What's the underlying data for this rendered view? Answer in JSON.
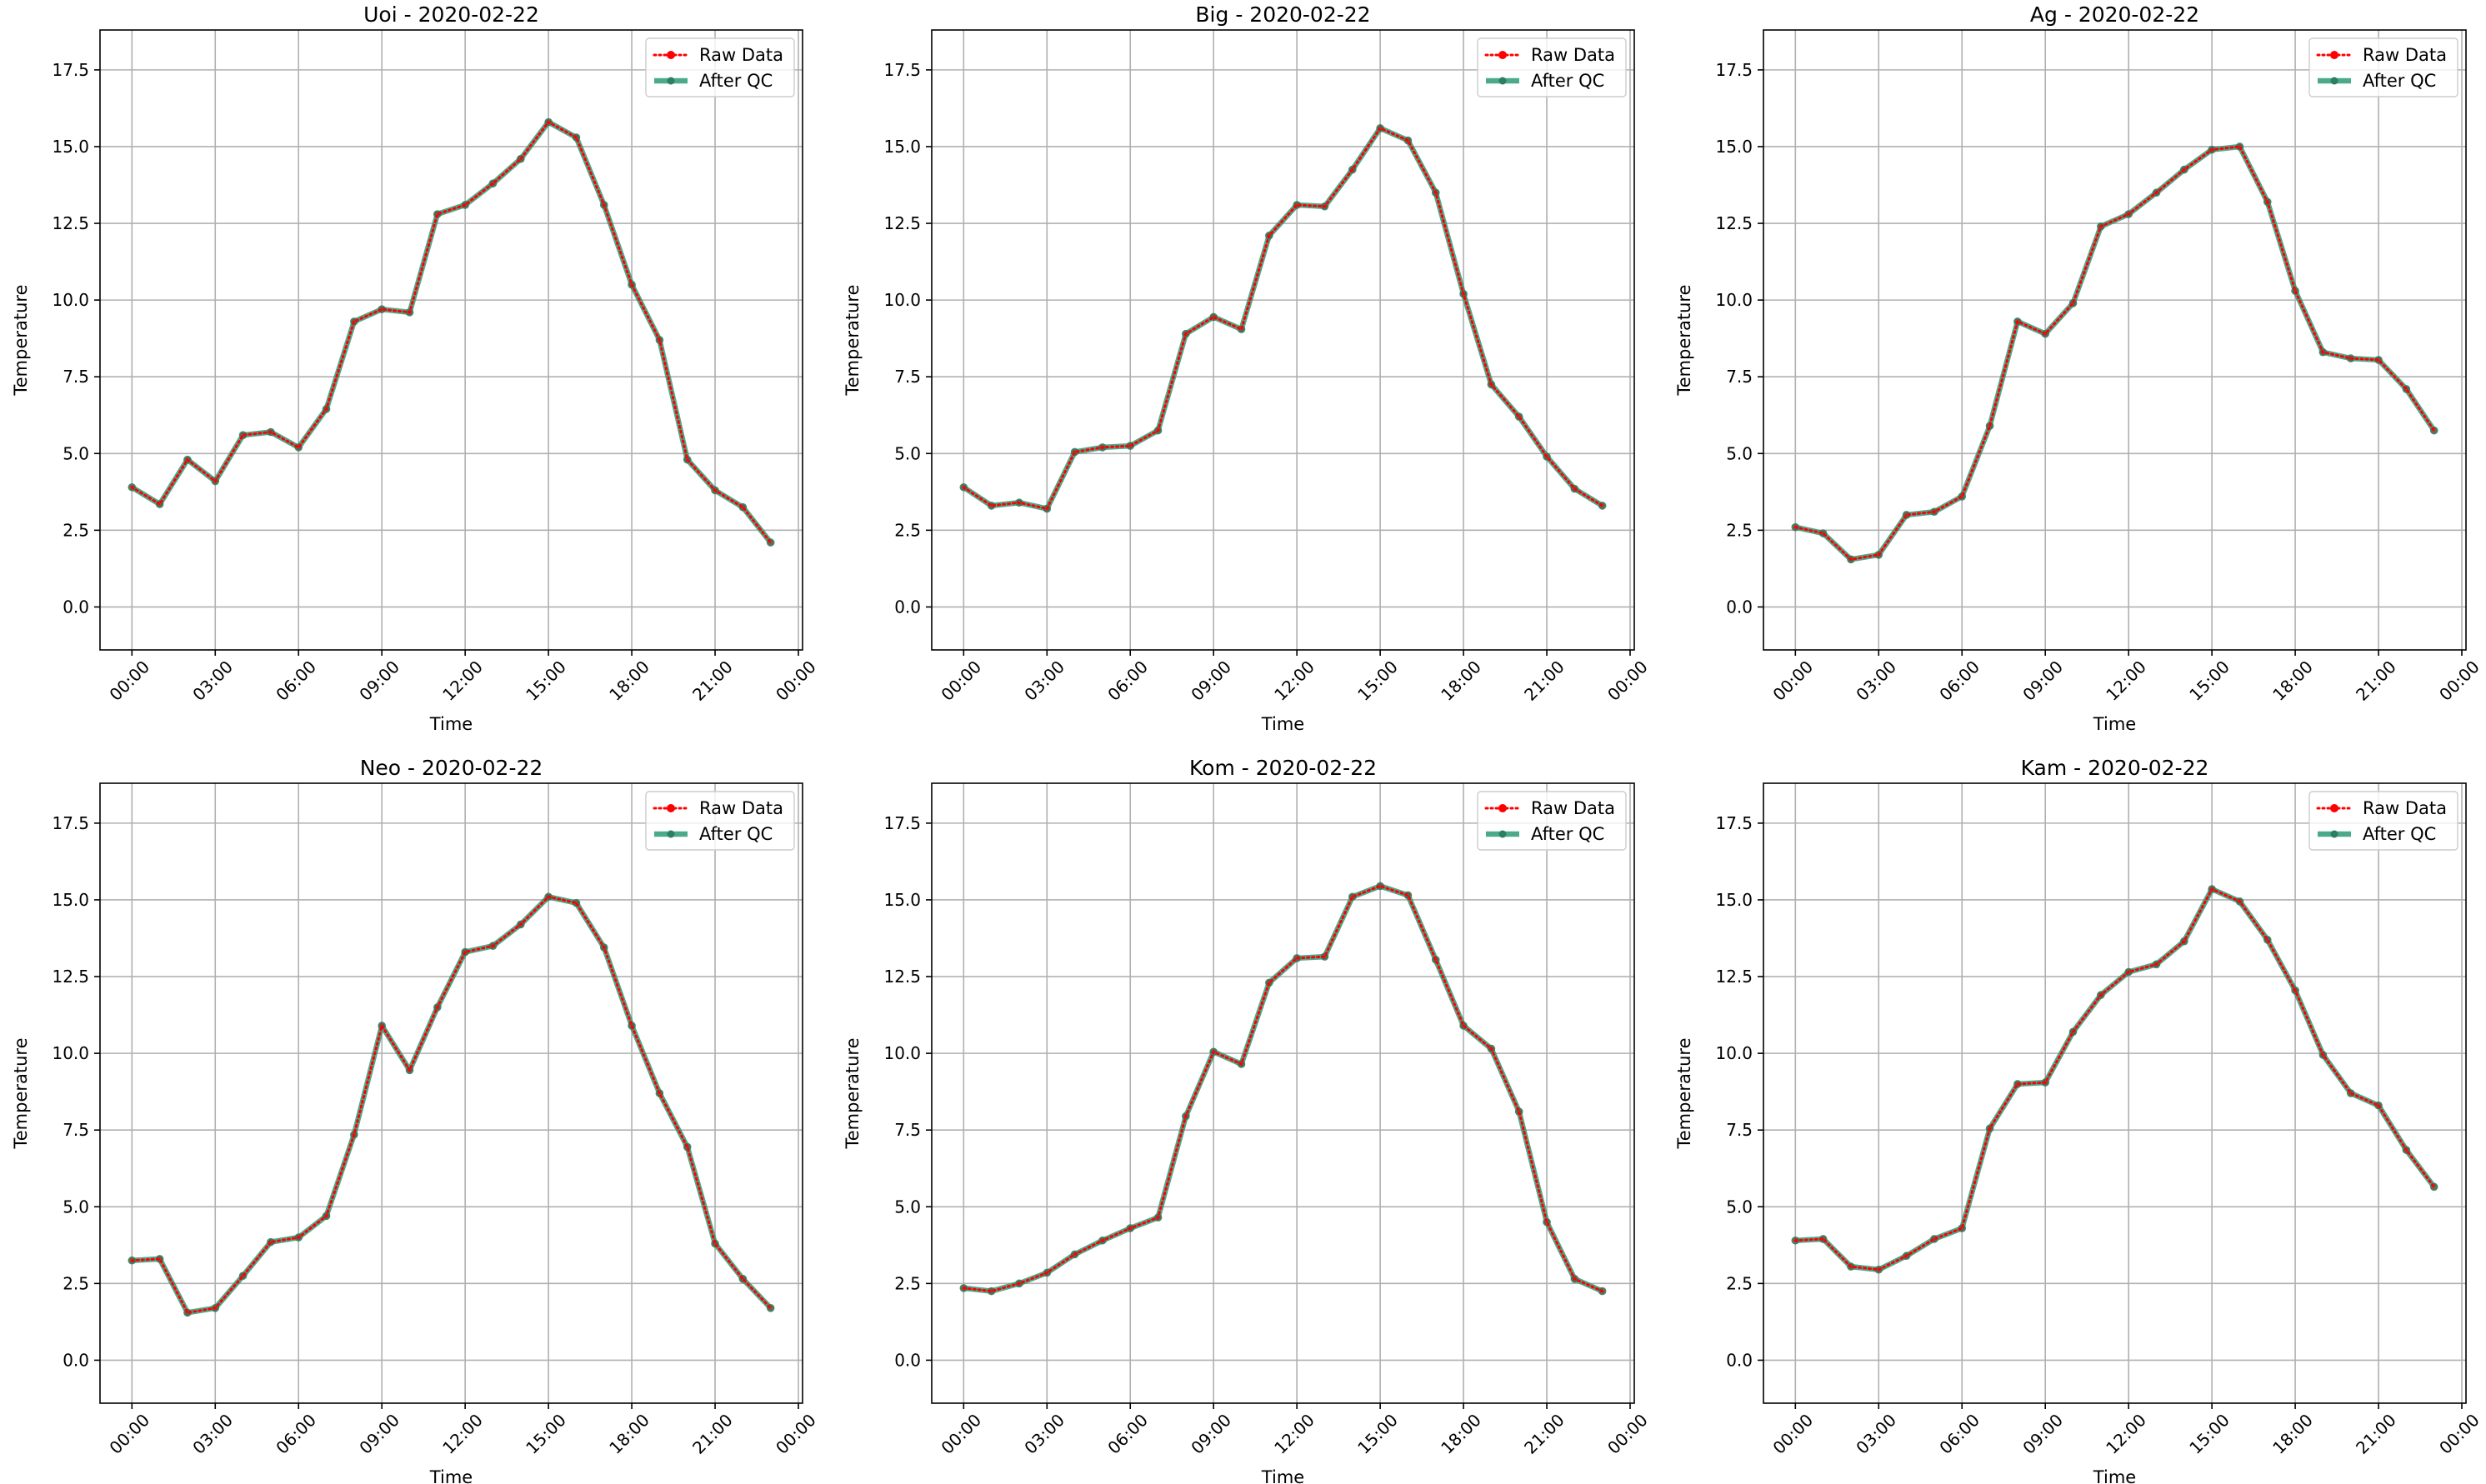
{
  "chart_data": [
    {
      "type": "line",
      "title": "Uoi - 2020-02-22",
      "xlabel": "Time",
      "ylabel": "Temperature",
      "x_unit": "hour",
      "xlim": [
        -1.15,
        24.15
      ],
      "ylim": [
        -1.4,
        18.8
      ],
      "xticks": [
        0,
        3,
        6,
        9,
        12,
        15,
        18,
        21,
        24
      ],
      "xtick_labels": [
        "00:00",
        "03:00",
        "06:00",
        "09:00",
        "12:00",
        "15:00",
        "18:00",
        "21:00",
        "00:00"
      ],
      "yticks": [
        0.0,
        2.5,
        5.0,
        7.5,
        10.0,
        12.5,
        15.0,
        17.5
      ],
      "ytick_labels": [
        "0.0",
        "2.5",
        "5.0",
        "7.5",
        "10.0",
        "12.5",
        "15.0",
        "17.5"
      ],
      "grid": true,
      "legend_position": "top-right",
      "x": [
        0,
        1,
        2,
        3,
        4,
        5,
        6,
        7,
        8,
        9,
        10,
        11,
        12,
        13,
        14,
        15,
        16,
        17,
        18,
        19,
        20,
        21,
        22,
        23
      ],
      "series": [
        {
          "name": "Raw Data",
          "style": "dotted-marker",
          "color": "#ff0000",
          "values": [
            3.9,
            3.35,
            4.8,
            4.1,
            5.6,
            5.7,
            5.2,
            6.45,
            9.3,
            9.7,
            9.6,
            12.8,
            13.1,
            13.8,
            14.6,
            15.8,
            15.3,
            13.1,
            10.5,
            8.7,
            4.8,
            3.8,
            3.25,
            2.1
          ]
        },
        {
          "name": "After QC",
          "style": "solid-marker",
          "color": "#2e9a78",
          "values": [
            3.9,
            3.35,
            4.8,
            4.1,
            5.6,
            5.7,
            5.2,
            6.45,
            9.3,
            9.7,
            9.6,
            12.8,
            13.1,
            13.8,
            14.6,
            15.8,
            15.3,
            13.1,
            10.5,
            8.7,
            4.8,
            3.8,
            3.25,
            2.1
          ]
        }
      ]
    },
    {
      "type": "line",
      "title": "Big - 2020-02-22",
      "xlabel": "Time",
      "ylabel": "Temperature",
      "x_unit": "hour",
      "xlim": [
        -1.15,
        24.15
      ],
      "ylim": [
        -1.4,
        18.8
      ],
      "xticks": [
        0,
        3,
        6,
        9,
        12,
        15,
        18,
        21,
        24
      ],
      "xtick_labels": [
        "00:00",
        "03:00",
        "06:00",
        "09:00",
        "12:00",
        "15:00",
        "18:00",
        "21:00",
        "00:00"
      ],
      "yticks": [
        0.0,
        2.5,
        5.0,
        7.5,
        10.0,
        12.5,
        15.0,
        17.5
      ],
      "ytick_labels": [
        "0.0",
        "2.5",
        "5.0",
        "7.5",
        "10.0",
        "12.5",
        "15.0",
        "17.5"
      ],
      "grid": true,
      "legend_position": "top-right",
      "x": [
        0,
        1,
        2,
        3,
        4,
        5,
        6,
        7,
        8,
        9,
        10,
        11,
        12,
        13,
        14,
        15,
        16,
        17,
        18,
        19,
        20,
        21,
        22,
        23
      ],
      "series": [
        {
          "name": "Raw Data",
          "style": "dotted-marker",
          "color": "#ff0000",
          "values": [
            3.9,
            3.3,
            3.4,
            3.2,
            5.05,
            5.2,
            5.25,
            5.75,
            8.9,
            9.45,
            9.05,
            12.1,
            13.1,
            13.05,
            14.25,
            15.6,
            15.2,
            13.5,
            10.2,
            7.25,
            6.2,
            4.9,
            3.85,
            3.3
          ]
        },
        {
          "name": "After QC",
          "style": "solid-marker",
          "color": "#2e9a78",
          "values": [
            3.9,
            3.3,
            3.4,
            3.2,
            5.05,
            5.2,
            5.25,
            5.75,
            8.9,
            9.45,
            9.05,
            12.1,
            13.1,
            13.05,
            14.25,
            15.6,
            15.2,
            13.5,
            10.2,
            7.25,
            6.2,
            4.9,
            3.85,
            3.3
          ]
        }
      ]
    },
    {
      "type": "line",
      "title": "Ag - 2020-02-22",
      "xlabel": "Time",
      "ylabel": "Temperature",
      "x_unit": "hour",
      "xlim": [
        -1.15,
        24.15
      ],
      "ylim": [
        -1.4,
        18.8
      ],
      "xticks": [
        0,
        3,
        6,
        9,
        12,
        15,
        18,
        21,
        24
      ],
      "xtick_labels": [
        "00:00",
        "03:00",
        "06:00",
        "09:00",
        "12:00",
        "15:00",
        "18:00",
        "21:00",
        "00:00"
      ],
      "yticks": [
        0.0,
        2.5,
        5.0,
        7.5,
        10.0,
        12.5,
        15.0,
        17.5
      ],
      "ytick_labels": [
        "0.0",
        "2.5",
        "5.0",
        "7.5",
        "10.0",
        "12.5",
        "15.0",
        "17.5"
      ],
      "grid": true,
      "legend_position": "top-right",
      "x": [
        0,
        1,
        2,
        3,
        4,
        5,
        6,
        7,
        8,
        9,
        10,
        11,
        12,
        13,
        14,
        15,
        16,
        17,
        18,
        19,
        20,
        21,
        22,
        23
      ],
      "series": [
        {
          "name": "Raw Data",
          "style": "dotted-marker",
          "color": "#ff0000",
          "values": [
            2.6,
            2.4,
            1.55,
            1.7,
            3.0,
            3.1,
            3.6,
            5.9,
            9.3,
            8.9,
            9.9,
            12.4,
            12.8,
            13.5,
            14.25,
            14.9,
            15.0,
            13.2,
            10.3,
            8.3,
            8.1,
            8.05,
            7.1,
            5.75
          ]
        },
        {
          "name": "After QC",
          "style": "solid-marker",
          "color": "#2e9a78",
          "values": [
            2.6,
            2.4,
            1.55,
            1.7,
            3.0,
            3.1,
            3.6,
            5.9,
            9.3,
            8.9,
            9.9,
            12.4,
            12.8,
            13.5,
            14.25,
            14.9,
            15.0,
            13.2,
            10.3,
            8.3,
            8.1,
            8.05,
            7.1,
            5.75
          ]
        }
      ]
    },
    {
      "type": "line",
      "title": "Neo - 2020-02-22",
      "xlabel": "Time",
      "ylabel": "Temperature",
      "x_unit": "hour",
      "xlim": [
        -1.15,
        24.15
      ],
      "ylim": [
        -1.4,
        18.8
      ],
      "xticks": [
        0,
        3,
        6,
        9,
        12,
        15,
        18,
        21,
        24
      ],
      "xtick_labels": [
        "00:00",
        "03:00",
        "06:00",
        "09:00",
        "12:00",
        "15:00",
        "18:00",
        "21:00",
        "00:00"
      ],
      "yticks": [
        0.0,
        2.5,
        5.0,
        7.5,
        10.0,
        12.5,
        15.0,
        17.5
      ],
      "ytick_labels": [
        "0.0",
        "2.5",
        "5.0",
        "7.5",
        "10.0",
        "12.5",
        "15.0",
        "17.5"
      ],
      "grid": true,
      "legend_position": "top-right",
      "x": [
        0,
        1,
        2,
        3,
        4,
        5,
        6,
        7,
        8,
        9,
        10,
        11,
        12,
        13,
        14,
        15,
        16,
        17,
        18,
        19,
        20,
        21,
        22,
        23
      ],
      "series": [
        {
          "name": "Raw Data",
          "style": "dotted-marker",
          "color": "#ff0000",
          "values": [
            3.25,
            3.3,
            1.55,
            1.7,
            2.75,
            3.85,
            4.0,
            4.7,
            7.35,
            10.9,
            9.45,
            11.5,
            13.3,
            13.5,
            14.2,
            15.1,
            14.9,
            13.45,
            10.9,
            8.7,
            6.95,
            3.8,
            2.65,
            1.7
          ]
        },
        {
          "name": "After QC",
          "style": "solid-marker",
          "color": "#2e9a78",
          "values": [
            3.25,
            3.3,
            1.55,
            1.7,
            2.75,
            3.85,
            4.0,
            4.7,
            7.35,
            10.9,
            9.45,
            11.5,
            13.3,
            13.5,
            14.2,
            15.1,
            14.9,
            13.45,
            10.9,
            8.7,
            6.95,
            3.8,
            2.65,
            1.7
          ]
        }
      ]
    },
    {
      "type": "line",
      "title": "Kom - 2020-02-22",
      "xlabel": "Time",
      "ylabel": "Temperature",
      "x_unit": "hour",
      "xlim": [
        -1.15,
        24.15
      ],
      "ylim": [
        -1.4,
        18.8
      ],
      "xticks": [
        0,
        3,
        6,
        9,
        12,
        15,
        18,
        21,
        24
      ],
      "xtick_labels": [
        "00:00",
        "03:00",
        "06:00",
        "09:00",
        "12:00",
        "15:00",
        "18:00",
        "21:00",
        "00:00"
      ],
      "yticks": [
        0.0,
        2.5,
        5.0,
        7.5,
        10.0,
        12.5,
        15.0,
        17.5
      ],
      "ytick_labels": [
        "0.0",
        "2.5",
        "5.0",
        "7.5",
        "10.0",
        "12.5",
        "15.0",
        "17.5"
      ],
      "grid": true,
      "legend_position": "top-right",
      "x": [
        0,
        1,
        2,
        3,
        4,
        5,
        6,
        7,
        8,
        9,
        10,
        11,
        12,
        13,
        14,
        15,
        16,
        17,
        18,
        19,
        20,
        21,
        22,
        23
      ],
      "series": [
        {
          "name": "Raw Data",
          "style": "dotted-marker",
          "color": "#ff0000",
          "values": [
            2.35,
            2.25,
            2.5,
            2.85,
            3.45,
            3.9,
            4.3,
            4.65,
            7.95,
            10.05,
            9.65,
            12.3,
            13.1,
            13.15,
            15.1,
            15.45,
            15.15,
            13.05,
            10.9,
            10.15,
            8.1,
            4.5,
            2.65,
            2.25
          ]
        },
        {
          "name": "After QC",
          "style": "solid-marker",
          "color": "#2e9a78",
          "values": [
            2.35,
            2.25,
            2.5,
            2.85,
            3.45,
            3.9,
            4.3,
            4.65,
            7.95,
            10.05,
            9.65,
            12.3,
            13.1,
            13.15,
            15.1,
            15.45,
            15.15,
            13.05,
            10.9,
            10.15,
            8.1,
            4.5,
            2.65,
            2.25
          ]
        }
      ]
    },
    {
      "type": "line",
      "title": "Kam - 2020-02-22",
      "xlabel": "Time",
      "ylabel": "Temperature",
      "x_unit": "hour",
      "xlim": [
        -1.15,
        24.15
      ],
      "ylim": [
        -1.4,
        18.8
      ],
      "xticks": [
        0,
        3,
        6,
        9,
        12,
        15,
        18,
        21,
        24
      ],
      "xtick_labels": [
        "00:00",
        "03:00",
        "06:00",
        "09:00",
        "12:00",
        "15:00",
        "18:00",
        "21:00",
        "00:00"
      ],
      "yticks": [
        0.0,
        2.5,
        5.0,
        7.5,
        10.0,
        12.5,
        15.0,
        17.5
      ],
      "ytick_labels": [
        "0.0",
        "2.5",
        "5.0",
        "7.5",
        "10.0",
        "12.5",
        "15.0",
        "17.5"
      ],
      "grid": true,
      "legend_position": "top-right",
      "x": [
        0,
        1,
        2,
        3,
        4,
        5,
        6,
        7,
        8,
        9,
        10,
        11,
        12,
        13,
        14,
        15,
        16,
        17,
        18,
        19,
        20,
        21,
        22,
        23
      ],
      "series": [
        {
          "name": "Raw Data",
          "style": "dotted-marker",
          "color": "#ff0000",
          "values": [
            3.9,
            3.95,
            3.05,
            2.95,
            3.4,
            3.95,
            4.3,
            7.55,
            9.0,
            9.05,
            10.7,
            11.9,
            12.65,
            12.9,
            13.65,
            15.35,
            14.95,
            13.7,
            12.05,
            9.95,
            8.7,
            8.3,
            6.85,
            5.65
          ]
        },
        {
          "name": "After QC",
          "style": "solid-marker",
          "color": "#2e9a78",
          "values": [
            3.9,
            3.95,
            3.05,
            2.95,
            3.4,
            3.95,
            4.3,
            7.55,
            9.0,
            9.05,
            10.7,
            11.9,
            12.65,
            12.9,
            13.65,
            15.35,
            14.95,
            13.7,
            12.05,
            9.95,
            8.7,
            8.3,
            6.85,
            5.65
          ]
        }
      ]
    }
  ]
}
